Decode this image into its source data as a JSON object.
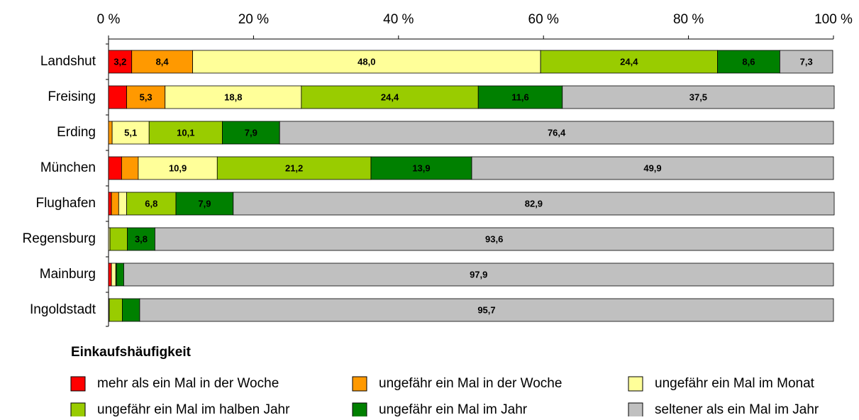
{
  "chart_data": {
    "type": "stacked-bar-horizontal",
    "categories": [
      "Landshut",
      "Freising",
      "Erding",
      "München",
      "Flughafen",
      "Regensburg",
      "Mainburg",
      "Ingoldstadt"
    ],
    "legend_title": "Einkaufshäufigkeit",
    "series": [
      {
        "name": "mehr als ein Mal in der Woche",
        "color": "#ff0000",
        "values": [
          3.2,
          2.5,
          0,
          1.8,
          0.4,
          0,
          0.4,
          0
        ],
        "value_labels": [
          "3,2",
          null,
          null,
          null,
          null,
          null,
          null,
          null
        ]
      },
      {
        "name": "ungefähr ein Mal in der Woche",
        "color": "#ff9900",
        "values": [
          8.4,
          5.3,
          0.5,
          2.3,
          1.0,
          0,
          0,
          0
        ],
        "value_labels": [
          "8,4",
          "5,3",
          null,
          null,
          null,
          null,
          null,
          null
        ]
      },
      {
        "name": "ungefähr ein Mal im Monat",
        "color": "#ffff99",
        "values": [
          48.0,
          18.8,
          5.1,
          10.9,
          1.1,
          0.2,
          0.6,
          0.1
        ],
        "value_labels": [
          "48,0",
          "18,8",
          "5,1",
          "10,9",
          null,
          null,
          null,
          null
        ]
      },
      {
        "name": "ungefähr ein Mal im halben Jahr",
        "color": "#99cc00",
        "values": [
          24.4,
          24.4,
          10.1,
          21.2,
          6.8,
          2.4,
          0.1,
          1.8
        ],
        "value_labels": [
          "24,4",
          "24,4",
          "10,1",
          "21,2",
          "6,8",
          null,
          null,
          null
        ]
      },
      {
        "name": "ungefähr ein Mal im Jahr",
        "color": "#008000",
        "values": [
          8.6,
          11.6,
          7.9,
          13.9,
          7.9,
          3.8,
          1.0,
          2.4
        ],
        "value_labels": [
          "8,6",
          "11,6",
          "7,9",
          "13,9",
          "7,9",
          "3,8",
          null,
          null
        ]
      },
      {
        "name": "seltener als ein Mal im Jahr",
        "color": "#c0c0c0",
        "values": [
          7.3,
          37.5,
          76.4,
          49.9,
          82.9,
          93.6,
          97.9,
          95.7
        ],
        "value_labels": [
          "7,3",
          "37,5",
          "76,4",
          "49,9",
          "82,9",
          "93,6",
          "97,9",
          "95,7"
        ]
      }
    ],
    "xlim": [
      0,
      100
    ],
    "xticks": [
      {
        "value": 0,
        "label": "0 %"
      },
      {
        "value": 20,
        "label": "20 %"
      },
      {
        "value": 40,
        "label": "40 %"
      },
      {
        "value": 60,
        "label": "60 %"
      },
      {
        "value": 80,
        "label": "80 %"
      },
      {
        "value": 100,
        "label": "100 %"
      }
    ]
  }
}
